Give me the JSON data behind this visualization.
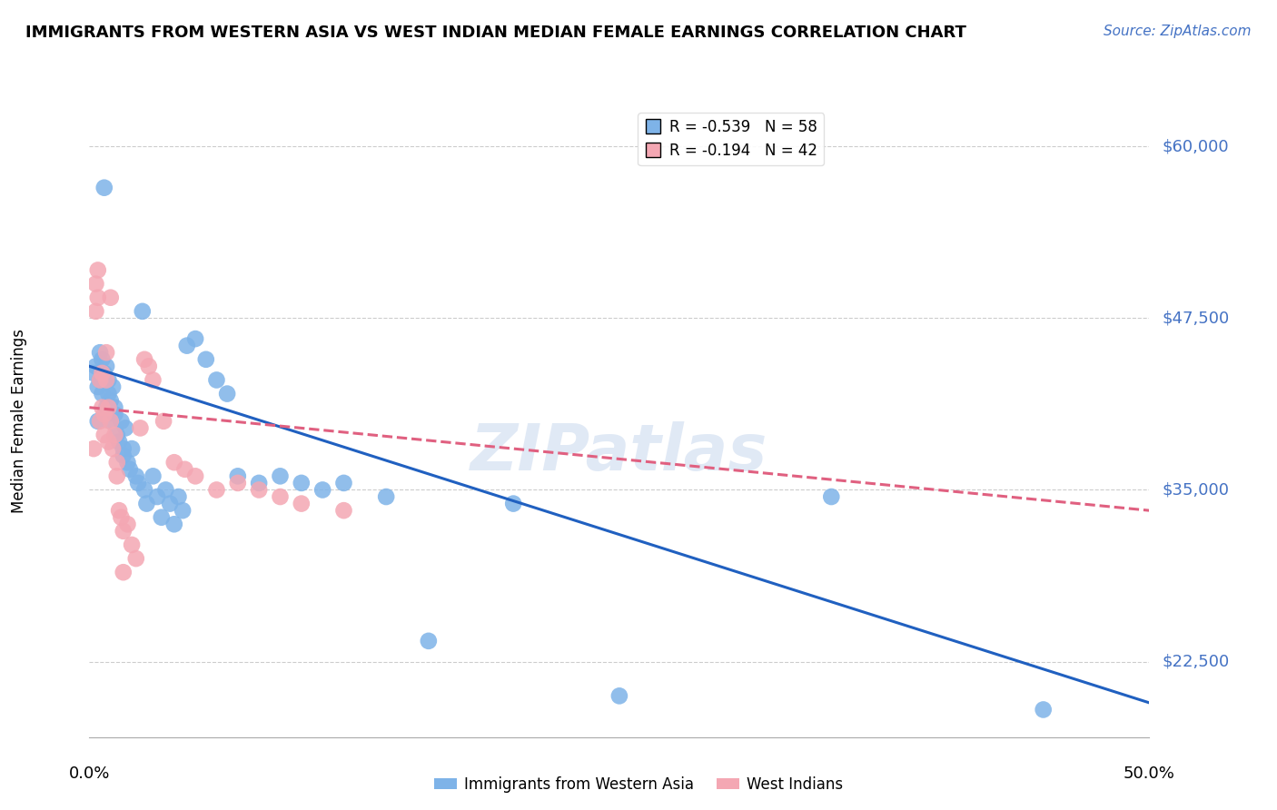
{
  "title": "IMMIGRANTS FROM WESTERN ASIA VS WEST INDIAN MEDIAN FEMALE EARNINGS CORRELATION CHART",
  "source": "Source: ZipAtlas.com",
  "ylabel": "Median Female Earnings",
  "y_ticks": [
    22500,
    35000,
    47500,
    60000
  ],
  "y_tick_labels": [
    "$22,500",
    "$35,000",
    "$47,500",
    "$60,000"
  ],
  "ylim": [
    17000,
    63000
  ],
  "xlim": [
    0.0,
    0.5
  ],
  "legend1_label": "R = -0.539   N = 58",
  "legend2_label": "R = -0.194   N = 42",
  "bottom_legend1": "Immigrants from Western Asia",
  "bottom_legend2": "West Indians",
  "watermark": "ZIPatlas",
  "blue_color": "#7EB3E8",
  "pink_color": "#F4A7B3",
  "blue_line_color": "#2060C0",
  "pink_line_color": "#E06080",
  "blue_scatter": [
    [
      0.002,
      43500
    ],
    [
      0.003,
      44000
    ],
    [
      0.004,
      42500
    ],
    [
      0.004,
      40000
    ],
    [
      0.005,
      45000
    ],
    [
      0.005,
      43000
    ],
    [
      0.006,
      44500
    ],
    [
      0.006,
      42000
    ],
    [
      0.007,
      57000
    ],
    [
      0.007,
      43500
    ],
    [
      0.008,
      41000
    ],
    [
      0.008,
      44000
    ],
    [
      0.009,
      42000
    ],
    [
      0.009,
      43000
    ],
    [
      0.01,
      40000
    ],
    [
      0.01,
      41500
    ],
    [
      0.011,
      42500
    ],
    [
      0.012,
      41000
    ],
    [
      0.012,
      40500
    ],
    [
      0.013,
      39000
    ],
    [
      0.014,
      38500
    ],
    [
      0.015,
      40000
    ],
    [
      0.016,
      38000
    ],
    [
      0.016,
      37500
    ],
    [
      0.017,
      39500
    ],
    [
      0.018,
      37000
    ],
    [
      0.019,
      36500
    ],
    [
      0.02,
      38000
    ],
    [
      0.022,
      36000
    ],
    [
      0.023,
      35500
    ],
    [
      0.025,
      48000
    ],
    [
      0.026,
      35000
    ],
    [
      0.027,
      34000
    ],
    [
      0.03,
      36000
    ],
    [
      0.032,
      34500
    ],
    [
      0.034,
      33000
    ],
    [
      0.036,
      35000
    ],
    [
      0.038,
      34000
    ],
    [
      0.04,
      32500
    ],
    [
      0.042,
      34500
    ],
    [
      0.044,
      33500
    ],
    [
      0.046,
      45500
    ],
    [
      0.05,
      46000
    ],
    [
      0.055,
      44500
    ],
    [
      0.06,
      43000
    ],
    [
      0.065,
      42000
    ],
    [
      0.07,
      36000
    ],
    [
      0.08,
      35500
    ],
    [
      0.09,
      36000
    ],
    [
      0.1,
      35500
    ],
    [
      0.11,
      35000
    ],
    [
      0.12,
      35500
    ],
    [
      0.14,
      34500
    ],
    [
      0.16,
      24000
    ],
    [
      0.2,
      34000
    ],
    [
      0.25,
      20000
    ],
    [
      0.35,
      34500
    ],
    [
      0.45,
      19000
    ]
  ],
  "pink_scatter": [
    [
      0.002,
      38000
    ],
    [
      0.003,
      50000
    ],
    [
      0.003,
      48000
    ],
    [
      0.004,
      51000
    ],
    [
      0.004,
      49000
    ],
    [
      0.005,
      43000
    ],
    [
      0.005,
      40000
    ],
    [
      0.006,
      43500
    ],
    [
      0.006,
      41000
    ],
    [
      0.007,
      40500
    ],
    [
      0.007,
      39000
    ],
    [
      0.008,
      45000
    ],
    [
      0.008,
      43000
    ],
    [
      0.009,
      41000
    ],
    [
      0.009,
      38500
    ],
    [
      0.01,
      49000
    ],
    [
      0.01,
      40000
    ],
    [
      0.011,
      38000
    ],
    [
      0.012,
      39000
    ],
    [
      0.013,
      37000
    ],
    [
      0.013,
      36000
    ],
    [
      0.014,
      33500
    ],
    [
      0.015,
      33000
    ],
    [
      0.016,
      32000
    ],
    [
      0.016,
      29000
    ],
    [
      0.018,
      32500
    ],
    [
      0.02,
      31000
    ],
    [
      0.022,
      30000
    ],
    [
      0.024,
      39500
    ],
    [
      0.026,
      44500
    ],
    [
      0.028,
      44000
    ],
    [
      0.03,
      43000
    ],
    [
      0.035,
      40000
    ],
    [
      0.04,
      37000
    ],
    [
      0.045,
      36500
    ],
    [
      0.05,
      36000
    ],
    [
      0.06,
      35000
    ],
    [
      0.07,
      35500
    ],
    [
      0.08,
      35000
    ],
    [
      0.09,
      34500
    ],
    [
      0.1,
      34000
    ],
    [
      0.12,
      33500
    ]
  ],
  "blue_line_x": [
    0.0,
    0.5
  ],
  "blue_line_y": [
    44000,
    19500
  ],
  "pink_line_x": [
    0.0,
    0.5
  ],
  "pink_line_y": [
    41000,
    33500
  ]
}
